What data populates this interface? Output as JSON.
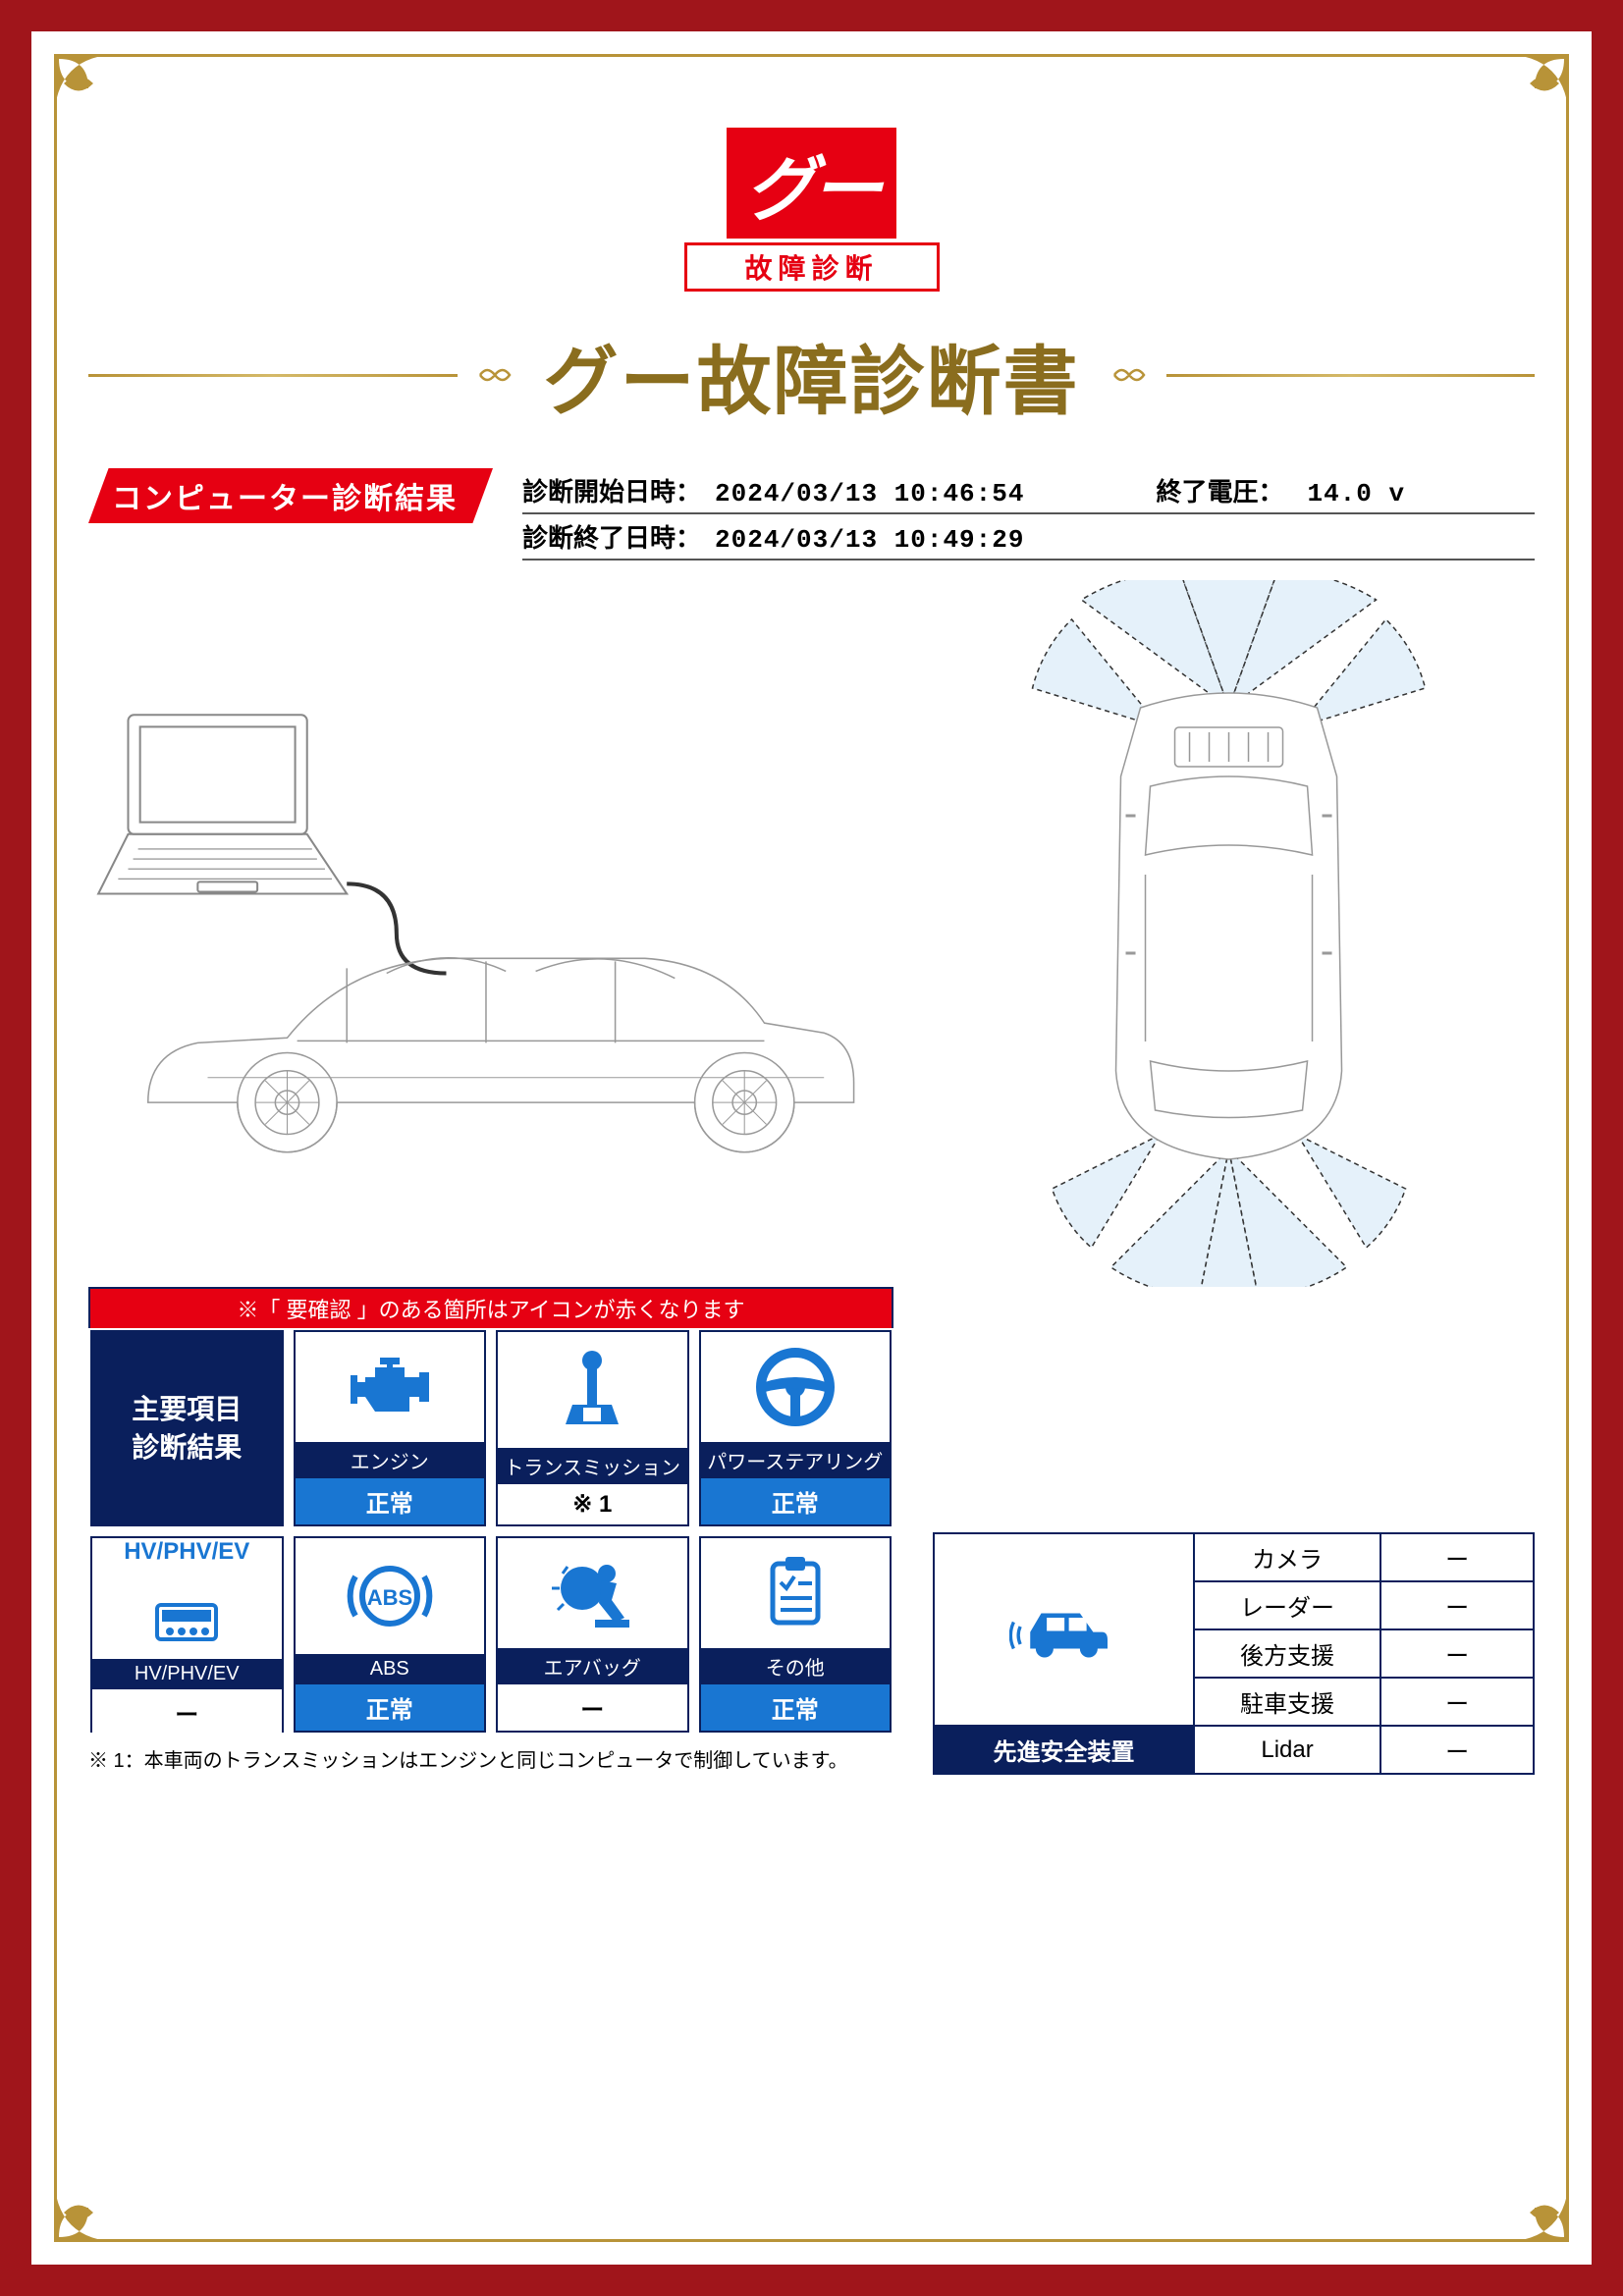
{
  "colors": {
    "frame": "#a0151b",
    "gold": "#b89338",
    "red": "#e60012",
    "navy": "#0a1f5c",
    "blue": "#1976d2",
    "text_brown": "#8a6d1e"
  },
  "logo": {
    "brand": "グー",
    "sub": "故障診断"
  },
  "title": "グー故障診断書",
  "section_header": "コンピューター診断結果",
  "meta": {
    "start_label": "診断開始日時：",
    "start_value": "2024/03/13 10:46:54",
    "voltage_label": "終了電圧：",
    "voltage_value": "14.0 v",
    "end_label": "診断終了日時：",
    "end_value": "2024/03/13 10:49:29"
  },
  "notice": "※「 要確認 」のある箇所はアイコンが赤くなります",
  "diag_header": "主要項目\n診断結果",
  "diagnostics": [
    {
      "name": "エンジン",
      "status": "正常",
      "status_class": "normal",
      "icon": "engine"
    },
    {
      "name": "トランスミッション",
      "status": "※ 1",
      "status_class": "note",
      "icon": "transmission"
    },
    {
      "name": "パワーステアリング",
      "status": "正常",
      "status_class": "normal",
      "icon": "steering"
    },
    {
      "name": "HV/PHV/EV",
      "status": "ー",
      "status_class": "note",
      "icon": "hv",
      "top_text": "HV/PHV/EV"
    },
    {
      "name": "ABS",
      "status": "正常",
      "status_class": "normal",
      "icon": "abs"
    },
    {
      "name": "エアバッグ",
      "status": "ー",
      "status_class": "note",
      "icon": "airbag"
    },
    {
      "name": "その他",
      "status": "正常",
      "status_class": "normal",
      "icon": "other"
    }
  ],
  "footnote": "※ 1：本車両のトランスミッションはエンジンと同じコンピュータで制御しています。",
  "safety": {
    "header": "先進安全装置",
    "rows": [
      {
        "label": "カメラ",
        "value": "ー"
      },
      {
        "label": "レーダー",
        "value": "ー"
      },
      {
        "label": "後方支援",
        "value": "ー"
      },
      {
        "label": "駐車支援",
        "value": "ー"
      },
      {
        "label": "Lidar",
        "value": "ー"
      }
    ]
  }
}
